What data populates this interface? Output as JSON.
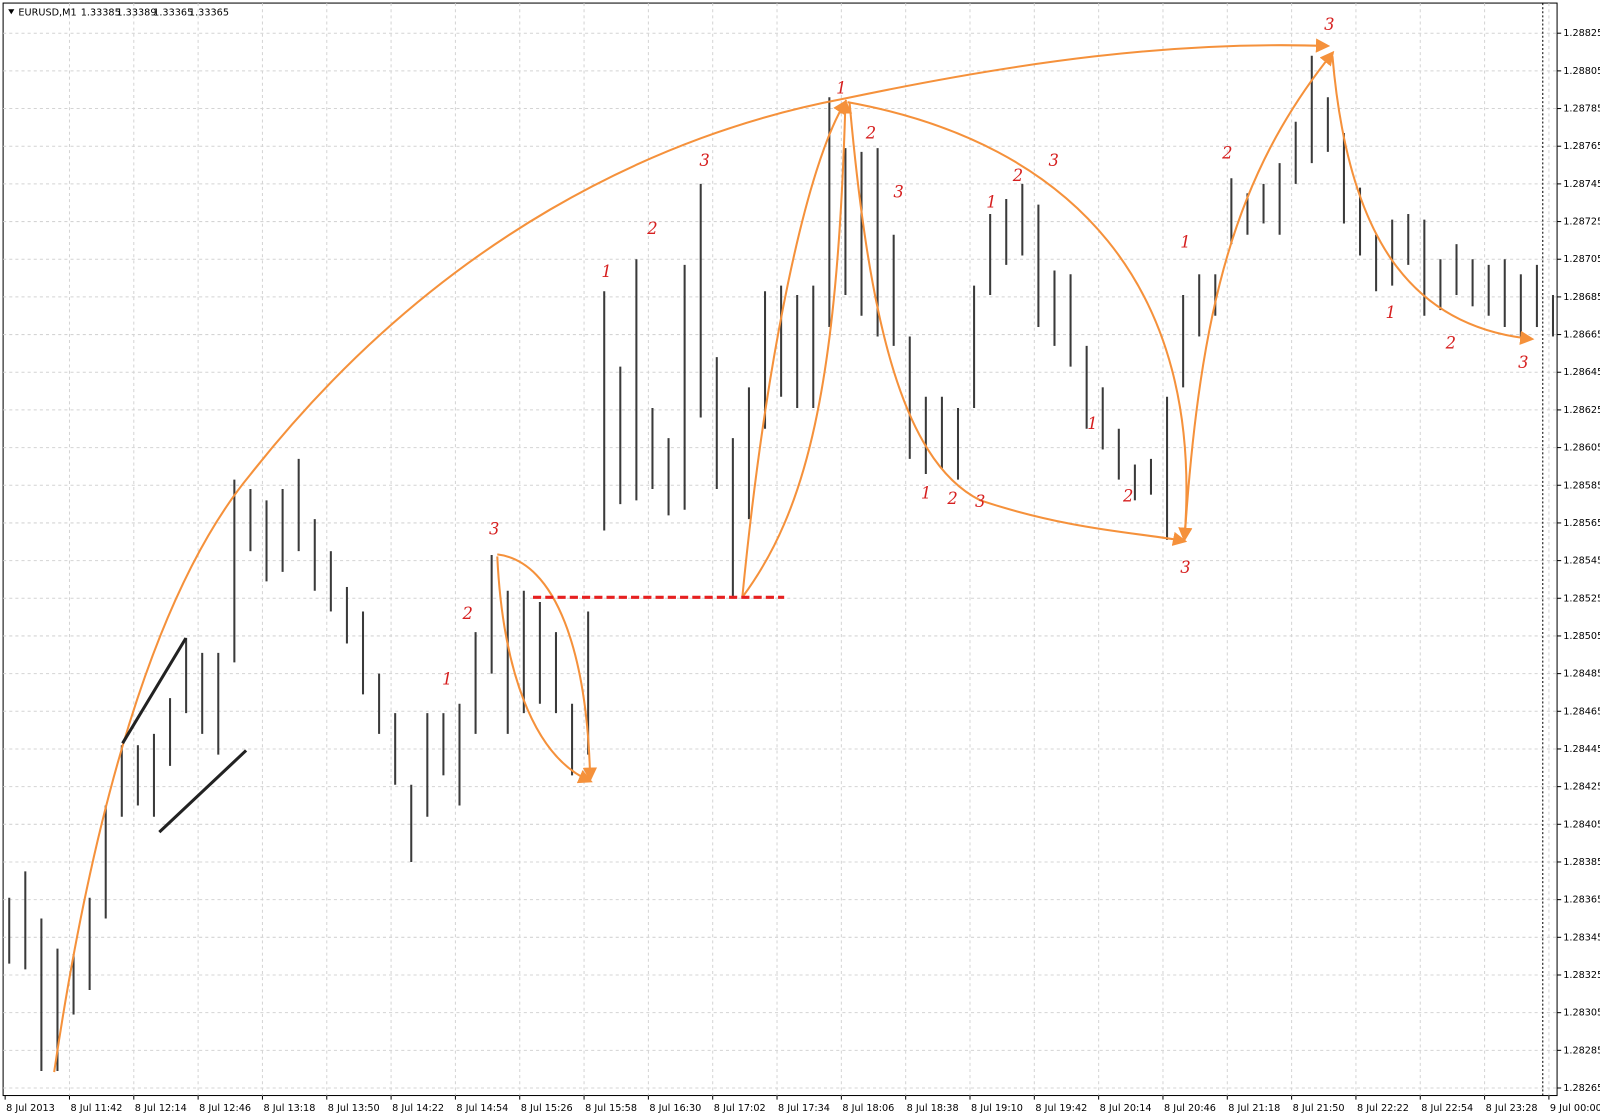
{
  "header": {
    "symbol": "EURUSD,M1",
    "ohlc": [
      1.33385,
      1.33389,
      1.33365,
      1.33365
    ]
  },
  "chart_data": {
    "type": "range_bar",
    "color": "#3a3a3a",
    "categories": [
      "8 Jul 2013",
      null,
      null,
      null,
      "8 Jul 11:42",
      null,
      null,
      null,
      "8 Jul 12:14",
      null,
      null,
      null,
      "8 Jul 12:46",
      null,
      null,
      null,
      "8 Jul 13:18",
      null,
      null,
      null,
      "8 Jul 13:50",
      null,
      null,
      null,
      "8 Jul 14:22",
      null,
      null,
      null,
      "8 Jul 14:54",
      null,
      null,
      null,
      "8 Jul 15:26",
      null,
      null,
      null,
      "8 Jul 15:58",
      null,
      null,
      null,
      "8 Jul 16:30",
      null,
      null,
      null,
      "8 Jul 17:02",
      null,
      null,
      null,
      "8 Jul 17:34",
      null,
      null,
      null,
      "8 Jul 18:06",
      null,
      null,
      null,
      "8 Jul 18:38",
      null,
      null,
      null,
      "8 Jul 19:10",
      null,
      null,
      null,
      "8 Jul 19:42",
      null,
      null,
      null,
      "8 Jul 20:14",
      null,
      null,
      null,
      "8 Jul 20:46",
      null,
      null,
      null,
      "8 Jul 21:18",
      null,
      null,
      null,
      "8 Jul 21:50",
      null,
      null,
      null,
      "8 Jul 22:22",
      null,
      null,
      null,
      "8 Jul 22:54",
      null,
      null,
      null,
      "8 Jul 23:28",
      null,
      null,
      null,
      "9 Jul 00:00"
    ],
    "high": [
      1.28366,
      1.2838,
      1.28355,
      1.28339,
      1.28336,
      1.28366,
      1.28415,
      1.28447,
      1.28447,
      1.28453,
      1.28472,
      1.28504,
      1.28496,
      1.28496,
      1.28588,
      1.28583,
      1.28577,
      1.28583,
      1.28599,
      1.28567,
      1.2855,
      1.28531,
      1.28518,
      1.28485,
      1.28464,
      1.28426,
      1.28464,
      1.28464,
      1.28469,
      1.28507,
      1.28548,
      1.28529,
      1.28529,
      1.28523,
      1.28507,
      1.28469,
      1.28518,
      1.28688,
      1.28648,
      1.28705,
      1.28626,
      1.2861,
      1.28702,
      1.28745,
      1.28653,
      1.2861,
      1.28637,
      1.28688,
      1.28691,
      1.28686,
      1.28691,
      1.28791,
      1.28764,
      1.28762,
      1.28764,
      1.28718,
      1.28664,
      1.28632,
      1.28632,
      1.28626,
      1.28691,
      1.28729,
      1.28737,
      1.28745,
      1.28734,
      1.28699,
      1.28697,
      1.28659,
      1.28637,
      1.28615,
      1.28596,
      1.28599,
      1.28632,
      1.28686,
      1.28697,
      1.28697,
      1.28748,
      1.2874,
      1.28745,
      1.28756,
      1.28778,
      1.28813,
      1.28791,
      1.28772,
      1.28743,
      1.28718,
      1.28726,
      1.28729,
      1.28726,
      1.28705,
      1.28713,
      1.28705,
      1.28702,
      1.28705,
      1.28697,
      1.28702,
      1.28686
    ],
    "low": [
      1.28331,
      1.28328,
      1.28274,
      1.28274,
      1.28304,
      1.28317,
      1.28355,
      1.28409,
      1.28415,
      1.28409,
      1.28436,
      1.28464,
      1.28453,
      1.28442,
      1.28491,
      1.2855,
      1.28534,
      1.28539,
      1.2855,
      1.28529,
      1.28518,
      1.28501,
      1.28474,
      1.28453,
      1.28426,
      1.28385,
      1.28409,
      1.28431,
      1.28415,
      1.28453,
      1.28485,
      1.28453,
      1.28464,
      1.28469,
      1.28464,
      1.28431,
      1.28442,
      1.28561,
      1.28575,
      1.28577,
      1.28583,
      1.28569,
      1.28572,
      1.28621,
      1.28583,
      1.28526,
      1.28567,
      1.28615,
      1.28632,
      1.28626,
      1.28626,
      1.28669,
      1.28686,
      1.28675,
      1.28664,
      1.28659,
      1.28599,
      1.28591,
      1.28594,
      1.28588,
      1.28626,
      1.28686,
      1.28702,
      1.28707,
      1.28669,
      1.28659,
      1.28648,
      1.28615,
      1.28604,
      1.28588,
      1.28577,
      1.2858,
      1.28556,
      1.28637,
      1.28664,
      1.28675,
      1.28713,
      1.28718,
      1.28724,
      1.28718,
      1.28745,
      1.28756,
      1.28762,
      1.28724,
      1.28707,
      1.28688,
      1.28691,
      1.28702,
      1.28675,
      1.28678,
      1.28686,
      1.2868,
      1.28675,
      1.28669,
      1.28664,
      1.28669,
      1.28664
    ],
    "ylim": [
      1.28261,
      1.28841
    ],
    "yticks": [
      1.28265,
      1.28285,
      1.28305,
      1.28325,
      1.28345,
      1.28365,
      1.28385,
      1.28405,
      1.28425,
      1.28445,
      1.28465,
      1.28485,
      1.28505,
      1.28525,
      1.28545,
      1.28565,
      1.28585,
      1.28605,
      1.28625,
      1.28645,
      1.28665,
      1.28685,
      1.28705,
      1.28725,
      1.28745,
      1.28765,
      1.28785,
      1.28805,
      1.28825
    ],
    "grid": true,
    "annotations": [
      "3",
      "2",
      "1",
      "1",
      "2",
      "3",
      "1",
      "2",
      "3",
      "1",
      "2",
      "3",
      "1",
      "2",
      "3",
      "1",
      "2",
      "3",
      "1",
      "2",
      "3",
      "1",
      "2",
      "3"
    ]
  }
}
